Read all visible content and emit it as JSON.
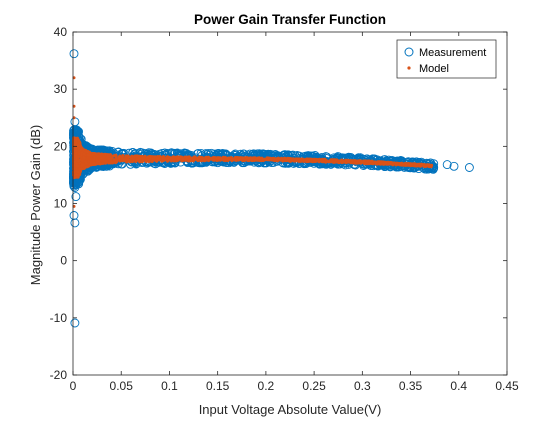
{
  "chart_data": {
    "type": "scatter",
    "title": "Power Gain Transfer Function",
    "xlabel": "Input Voltage Absolute Value(V)",
    "ylabel": "Magnitude Power Gain (dB)",
    "xlim": [
      0,
      0.45
    ],
    "ylim": [
      -20,
      40
    ],
    "xticks": [
      "0",
      "0.05",
      "0.1",
      "0.15",
      "0.2",
      "0.25",
      "0.3",
      "0.35",
      "0.4",
      "0.45"
    ],
    "yticks": [
      "-20",
      "-10",
      "0",
      "10",
      "20",
      "30",
      "40"
    ],
    "grid": false,
    "legend_position": "top-right",
    "series": [
      {
        "name": "Measurement",
        "marker": "open-circle",
        "color": "#0072BD",
        "outliers": [
          {
            "x": 0.001,
            "y": 36.2
          },
          {
            "x": 0.002,
            "y": 24.3
          },
          {
            "x": 0.003,
            "y": 22.8
          },
          {
            "x": 0.002,
            "y": 14.6
          },
          {
            "x": 0.002,
            "y": 12.8
          },
          {
            "x": 0.003,
            "y": 11.2
          },
          {
            "x": 0.001,
            "y": 7.9
          },
          {
            "x": 0.002,
            "y": 6.6
          },
          {
            "x": 0.002,
            "y": -10.9
          },
          {
            "x": 0.365,
            "y": 16.6
          },
          {
            "x": 0.374,
            "y": 16.3
          },
          {
            "x": 0.388,
            "y": 16.8
          },
          {
            "x": 0.395,
            "y": 16.5
          },
          {
            "x": 0.411,
            "y": 16.3
          }
        ],
        "band": [
          {
            "x": 0.005,
            "lo": 13.0,
            "hi": 23.0
          },
          {
            "x": 0.01,
            "lo": 15.0,
            "hi": 20.5
          },
          {
            "x": 0.02,
            "lo": 16.2,
            "hi": 19.6
          },
          {
            "x": 0.05,
            "lo": 16.8,
            "hi": 19.0
          },
          {
            "x": 0.1,
            "lo": 17.0,
            "hi": 18.9
          },
          {
            "x": 0.15,
            "lo": 17.1,
            "hi": 18.8
          },
          {
            "x": 0.2,
            "lo": 17.1,
            "hi": 18.7
          },
          {
            "x": 0.25,
            "lo": 16.9,
            "hi": 18.4
          },
          {
            "x": 0.3,
            "lo": 16.6,
            "hi": 18.0
          },
          {
            "x": 0.35,
            "lo": 16.2,
            "hi": 17.4
          },
          {
            "x": 0.375,
            "lo": 15.9,
            "hi": 17.1
          }
        ]
      },
      {
        "name": "Model",
        "marker": "dot",
        "color": "#D95319",
        "outliers": [
          {
            "x": 0.001,
            "y": 32.0
          },
          {
            "x": 0.001,
            "y": 27.0
          },
          {
            "x": 0.001,
            "y": 25.0
          },
          {
            "x": 0.001,
            "y": 9.5
          }
        ],
        "band": [
          {
            "x": 0.005,
            "lo": 14.5,
            "hi": 21.5
          },
          {
            "x": 0.01,
            "lo": 16.0,
            "hi": 19.5
          },
          {
            "x": 0.02,
            "lo": 16.8,
            "hi": 18.8
          },
          {
            "x": 0.05,
            "lo": 17.2,
            "hi": 18.4
          },
          {
            "x": 0.1,
            "lo": 17.4,
            "hi": 18.2
          },
          {
            "x": 0.15,
            "lo": 17.5,
            "hi": 18.1
          },
          {
            "x": 0.2,
            "lo": 17.5,
            "hi": 18.0
          },
          {
            "x": 0.25,
            "lo": 17.3,
            "hi": 17.8
          },
          {
            "x": 0.3,
            "lo": 17.0,
            "hi": 17.5
          },
          {
            "x": 0.35,
            "lo": 16.6,
            "hi": 17.0
          },
          {
            "x": 0.373,
            "lo": 16.4,
            "hi": 16.8
          }
        ]
      }
    ]
  }
}
